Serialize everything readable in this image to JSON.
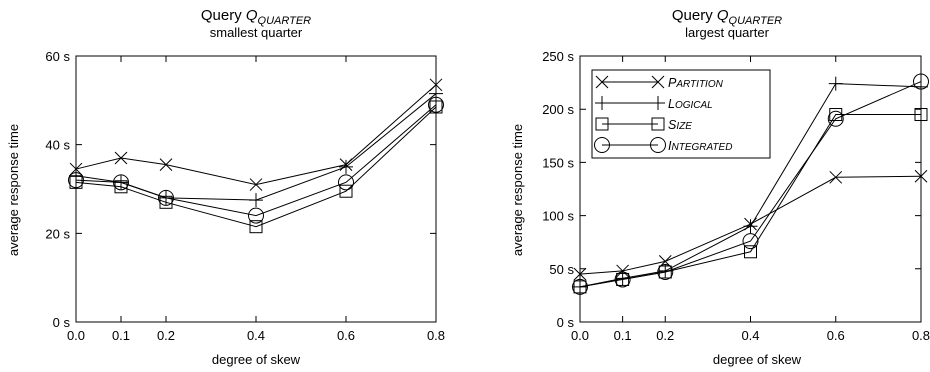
{
  "chart_data": [
    {
      "type": "line",
      "title_prefix": "Query ",
      "title_q": "Q",
      "title_sub": "QUARTER",
      "subtitle": "smallest quarter",
      "xlabel": "degree of skew",
      "ylabel": "average response time",
      "x": [
        0.0,
        0.1,
        0.2,
        0.4,
        0.6,
        0.8
      ],
      "xticks": [
        "0.0",
        "0.1",
        "0.2",
        "0.4",
        "0.6",
        "0.8"
      ],
      "xlim": [
        0.0,
        0.8
      ],
      "ylim": [
        0,
        60
      ],
      "yticks": [
        {
          "value": 0,
          "label": "0 s"
        },
        {
          "value": 20,
          "label": "20 s"
        },
        {
          "value": 40,
          "label": "40 s"
        },
        {
          "value": 60,
          "label": "60 s"
        }
      ],
      "grid": false,
      "legend": null,
      "series": [
        {
          "name": "Partition",
          "marker": "x",
          "values": [
            34.5,
            37.0,
            35.5,
            31.0,
            35.5,
            53.5
          ]
        },
        {
          "name": "Logical",
          "marker": "plus",
          "values": [
            33.0,
            31.5,
            28.0,
            27.5,
            35.0,
            51.5
          ]
        },
        {
          "name": "Size",
          "marker": "square",
          "values": [
            31.5,
            30.5,
            27.0,
            21.5,
            29.5,
            48.5
          ]
        },
        {
          "name": "Integrated",
          "marker": "circle",
          "values": [
            32.0,
            31.5,
            28.0,
            24.0,
            31.5,
            49.0
          ]
        }
      ]
    },
    {
      "type": "line",
      "title_prefix": "Query ",
      "title_q": "Q",
      "title_sub": "QUARTER",
      "subtitle": "largest quarter",
      "xlabel": "degree of skew",
      "ylabel": "average response time",
      "x": [
        0.0,
        0.1,
        0.2,
        0.4,
        0.6,
        0.8
      ],
      "xticks": [
        "0.0",
        "0.1",
        "0.2",
        "0.4",
        "0.6",
        "0.8"
      ],
      "xlim": [
        0.0,
        0.8
      ],
      "ylim": [
        0,
        250
      ],
      "yticks": [
        {
          "value": 0,
          "label": "0 s"
        },
        {
          "value": 50,
          "label": "50 s"
        },
        {
          "value": 100,
          "label": "100 s"
        },
        {
          "value": 150,
          "label": "150 s"
        },
        {
          "value": 200,
          "label": "200 s"
        },
        {
          "value": 250,
          "label": "250 s"
        }
      ],
      "grid": false,
      "legend": "top-left",
      "series": [
        {
          "name": "Partition",
          "legend_first": "P",
          "legend_rest": "ARTITION",
          "marker": "x",
          "values": [
            45,
            48,
            57,
            92,
            136,
            137
          ]
        },
        {
          "name": "Logical",
          "legend_first": "L",
          "legend_rest": "OGICAL",
          "marker": "plus",
          "values": [
            33,
            41,
            48,
            90,
            224,
            221
          ]
        },
        {
          "name": "Size",
          "legend_first": "S",
          "legend_rest": "IZE",
          "marker": "square",
          "values": [
            33,
            40,
            47,
            66,
            195,
            195
          ]
        },
        {
          "name": "Integrated",
          "legend_first": "I",
          "legend_rest": "NTEGRATED",
          "marker": "circle",
          "values": [
            33,
            40,
            47,
            76,
            191,
            226
          ]
        }
      ]
    }
  ]
}
